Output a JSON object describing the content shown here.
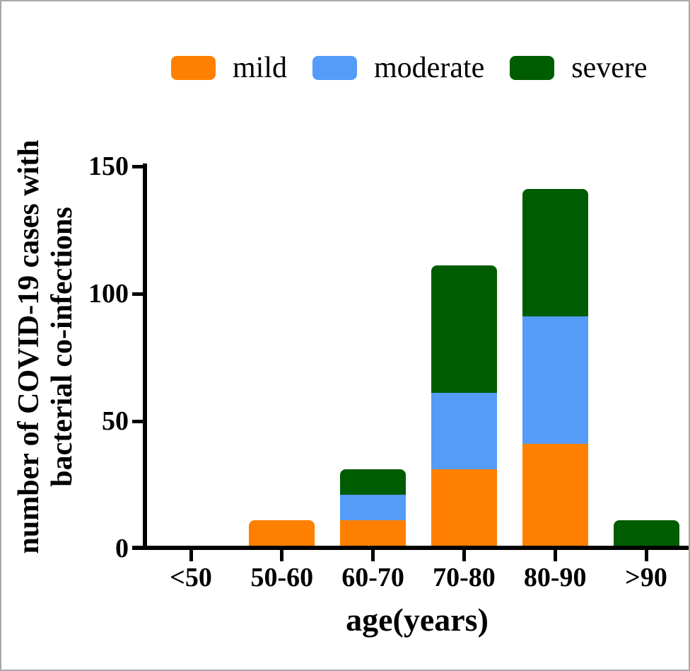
{
  "figure": {
    "background": "#ffffff",
    "frame_border_color": "#a9a9a9",
    "axis_color": "#000000",
    "text_color": "#000000"
  },
  "chart_data": {
    "type": "bar",
    "stacked": true,
    "title": "",
    "xlabel": "age(years)",
    "ylabel_lines": [
      "number of COVID-19 cases with",
      "bacterial co-infections"
    ],
    "categories": [
      "<50",
      "50-60",
      "60-70",
      "70-80",
      "80-90",
      ">90"
    ],
    "series": [
      {
        "name": "mild",
        "color": "#FF8000",
        "values": [
          0,
          11,
          11,
          31,
          41,
          0
        ]
      },
      {
        "name": "moderate",
        "color": "#559BF8",
        "values": [
          0,
          0,
          10,
          30,
          50,
          0
        ]
      },
      {
        "name": "severe",
        "color": "#005C00",
        "values": [
          0,
          0,
          10,
          50,
          50,
          11
        ]
      }
    ],
    "stack_totals": [
      0,
      11,
      31,
      111,
      141,
      11
    ],
    "yticks": [
      0,
      50,
      100,
      150
    ],
    "ylim": [
      0,
      150
    ],
    "legend_position": "top",
    "grid": false
  }
}
